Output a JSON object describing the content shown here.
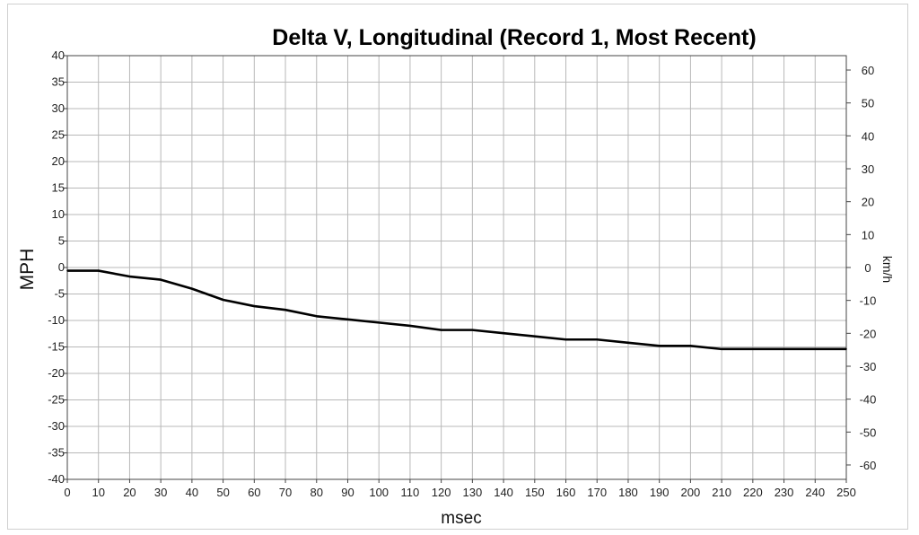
{
  "chart_data": {
    "type": "line",
    "title": "Delta V, Longitudinal (Record 1, Most Recent)",
    "xlabel": "msec",
    "ylabel": "MPH",
    "y2label": "km/h",
    "xlim": [
      0,
      250
    ],
    "ylim": [
      -40,
      40
    ],
    "y2lim": [
      -64.37,
      64.37
    ],
    "x_ticks": [
      0,
      10,
      20,
      30,
      40,
      50,
      60,
      70,
      80,
      90,
      100,
      110,
      120,
      130,
      140,
      150,
      160,
      170,
      180,
      190,
      200,
      210,
      220,
      230,
      240,
      250
    ],
    "y_ticks": [
      40,
      35,
      30,
      25,
      20,
      15,
      10,
      5,
      0,
      -5,
      -10,
      -15,
      -20,
      -25,
      -30,
      -35,
      -40
    ],
    "y2_ticks": [
      60,
      50,
      40,
      30,
      20,
      10,
      0,
      -10,
      -20,
      -30,
      -40,
      -50,
      -60
    ],
    "grid": true,
    "series": [
      {
        "x": [
          0,
          10,
          20,
          30,
          40,
          50,
          60,
          70,
          80,
          90,
          100,
          110,
          120,
          130,
          140,
          150,
          160,
          170,
          180,
          190,
          200,
          210,
          220,
          230,
          240,
          250
        ],
        "y": [
          -0.6,
          -0.6,
          -1.7,
          -2.3,
          -4.0,
          -6.1,
          -7.3,
          -8.0,
          -9.2,
          -9.8,
          -10.4,
          -11.0,
          -11.8,
          -11.8,
          -12.4,
          -13.0,
          -13.6,
          -13.6,
          -14.2,
          -14.8,
          -14.8,
          -15.4,
          -15.4,
          -15.4,
          -15.4,
          -15.4
        ]
      }
    ],
    "colors": {
      "line": "#000000",
      "grid": "#b8b8b8",
      "axis": "#444444"
    }
  }
}
